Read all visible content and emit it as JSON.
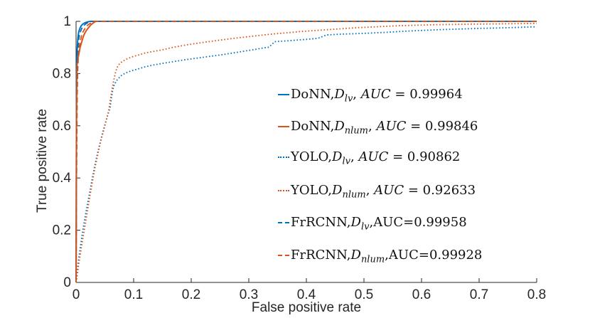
{
  "chart_data": {
    "type": "line",
    "xlabel": "False positive rate",
    "ylabel": "True positive rate",
    "xlim": [
      0,
      0.8
    ],
    "ylim": [
      0,
      1
    ],
    "grid": false,
    "legend_position": "center-right, no box",
    "x_tick_values": [
      0,
      0.1,
      0.2,
      0.3,
      0.4,
      0.5,
      0.6,
      0.7,
      0.8
    ],
    "x_tick_labels": [
      "0",
      "0.1",
      "0.2",
      "0.3",
      "0.4",
      "0.5",
      "0.6",
      "0.7",
      "0.8"
    ],
    "y_tick_values": [
      0,
      0.2,
      0.4,
      0.6,
      0.8,
      1
    ],
    "y_tick_labels": [
      "0",
      "0.2",
      "0.4",
      "0.6",
      "0.8",
      "1"
    ],
    "axis_color": "#262626",
    "series": [
      {
        "name": "DoNN-Dlv",
        "label": "DoNN,Dlv",
        "auc": 0.99964,
        "color": "#0072BD",
        "line_style": "solid",
        "points": [
          [
            0,
            0
          ],
          [
            0.0004,
            0.3
          ],
          [
            0.0006,
            0.62
          ],
          [
            0.001,
            0.8
          ],
          [
            0.0015,
            0.86
          ],
          [
            0.002,
            0.895
          ],
          [
            0.003,
            0.93
          ],
          [
            0.004,
            0.95
          ],
          [
            0.005,
            0.962
          ],
          [
            0.007,
            0.975
          ],
          [
            0.009,
            0.983
          ],
          [
            0.012,
            0.99
          ],
          [
            0.015,
            0.994
          ],
          [
            0.02,
            0.998
          ],
          [
            0.025,
            1
          ],
          [
            0.8,
            1
          ]
        ]
      },
      {
        "name": "DoNN-Dnlum",
        "label": "DoNN,Dnlum",
        "auc": 0.99846,
        "color": "#D95319",
        "line_style": "solid",
        "points": [
          [
            0,
            0
          ],
          [
            0.0004,
            0.28
          ],
          [
            0.0008,
            0.6
          ],
          [
            0.0012,
            0.76
          ],
          [
            0.0016,
            0.82
          ],
          [
            0.002,
            0.84
          ],
          [
            0.003,
            0.855
          ],
          [
            0.004,
            0.865
          ],
          [
            0.005,
            0.876
          ],
          [
            0.006,
            0.888
          ],
          [
            0.007,
            0.9
          ],
          [
            0.009,
            0.915
          ],
          [
            0.011,
            0.93
          ],
          [
            0.013,
            0.944
          ],
          [
            0.015,
            0.954
          ],
          [
            0.018,
            0.965
          ],
          [
            0.021,
            0.974
          ],
          [
            0.024,
            0.982
          ],
          [
            0.027,
            0.989
          ],
          [
            0.03,
            0.994
          ],
          [
            0.034,
            1
          ],
          [
            0.8,
            1
          ]
        ]
      },
      {
        "name": "YOLO-Dlv",
        "label": "YOLO,Dlv",
        "auc": 0.90862,
        "color": "#0072BD",
        "line_style": "dotted",
        "points": [
          [
            0,
            0
          ],
          [
            0.001,
            0.02
          ],
          [
            0.002,
            0.045
          ],
          [
            0.004,
            0.08
          ],
          [
            0.006,
            0.115
          ],
          [
            0.008,
            0.145
          ],
          [
            0.01,
            0.175
          ],
          [
            0.013,
            0.215
          ],
          [
            0.016,
            0.255
          ],
          [
            0.019,
            0.29
          ],
          [
            0.022,
            0.325
          ],
          [
            0.025,
            0.36
          ],
          [
            0.028,
            0.398
          ],
          [
            0.031,
            0.43
          ],
          [
            0.034,
            0.462
          ],
          [
            0.037,
            0.492
          ],
          [
            0.04,
            0.52
          ],
          [
            0.044,
            0.555
          ],
          [
            0.048,
            0.588
          ],
          [
            0.052,
            0.62
          ],
          [
            0.056,
            0.648
          ],
          [
            0.059,
            0.668
          ],
          [
            0.061,
            0.7
          ],
          [
            0.0635,
            0.735
          ],
          [
            0.066,
            0.755
          ],
          [
            0.07,
            0.772
          ],
          [
            0.075,
            0.785
          ],
          [
            0.08,
            0.795
          ],
          [
            0.09,
            0.806
          ],
          [
            0.1,
            0.813
          ],
          [
            0.11,
            0.819
          ],
          [
            0.12,
            0.826
          ],
          [
            0.135,
            0.833
          ],
          [
            0.15,
            0.839
          ],
          [
            0.17,
            0.846
          ],
          [
            0.19,
            0.853
          ],
          [
            0.21,
            0.859
          ],
          [
            0.23,
            0.865
          ],
          [
            0.25,
            0.871
          ],
          [
            0.27,
            0.878
          ],
          [
            0.29,
            0.885
          ],
          [
            0.31,
            0.892
          ],
          [
            0.325,
            0.898
          ],
          [
            0.335,
            0.901
          ],
          [
            0.345,
            0.922
          ],
          [
            0.37,
            0.926
          ],
          [
            0.4,
            0.931
          ],
          [
            0.42,
            0.935
          ],
          [
            0.435,
            0.948
          ],
          [
            0.46,
            0.951
          ],
          [
            0.49,
            0.953
          ],
          [
            0.51,
            0.955
          ],
          [
            0.54,
            0.958
          ],
          [
            0.57,
            0.962
          ],
          [
            0.6,
            0.965
          ],
          [
            0.63,
            0.968
          ],
          [
            0.66,
            0.97
          ],
          [
            0.7,
            0.973
          ],
          [
            0.74,
            0.975
          ],
          [
            0.77,
            0.977
          ],
          [
            0.8,
            0.979
          ]
        ]
      },
      {
        "name": "YOLO-Dnlum",
        "label": "YOLO,Dnlum",
        "auc": 0.92633,
        "color": "#D95319",
        "line_style": "dotted",
        "points": [
          [
            0,
            0
          ],
          [
            0.002,
            0.025
          ],
          [
            0.004,
            0.06
          ],
          [
            0.006,
            0.09
          ],
          [
            0.009,
            0.13
          ],
          [
            0.012,
            0.17
          ],
          [
            0.015,
            0.21
          ],
          [
            0.018,
            0.25
          ],
          [
            0.021,
            0.29
          ],
          [
            0.024,
            0.33
          ],
          [
            0.027,
            0.368
          ],
          [
            0.03,
            0.405
          ],
          [
            0.033,
            0.44
          ],
          [
            0.036,
            0.472
          ],
          [
            0.039,
            0.503
          ],
          [
            0.042,
            0.532
          ],
          [
            0.045,
            0.558
          ],
          [
            0.048,
            0.583
          ],
          [
            0.051,
            0.608
          ],
          [
            0.054,
            0.633
          ],
          [
            0.057,
            0.663
          ],
          [
            0.059,
            0.693
          ],
          [
            0.061,
            0.72
          ],
          [
            0.063,
            0.745
          ],
          [
            0.065,
            0.77
          ],
          [
            0.068,
            0.8
          ],
          [
            0.071,
            0.822
          ],
          [
            0.075,
            0.836
          ],
          [
            0.08,
            0.846
          ],
          [
            0.09,
            0.858
          ],
          [
            0.1,
            0.866
          ],
          [
            0.11,
            0.872
          ],
          [
            0.12,
            0.879
          ],
          [
            0.135,
            0.885
          ],
          [
            0.15,
            0.891
          ],
          [
            0.17,
            0.901
          ],
          [
            0.19,
            0.909
          ],
          [
            0.21,
            0.916
          ],
          [
            0.23,
            0.922
          ],
          [
            0.25,
            0.928
          ],
          [
            0.27,
            0.934
          ],
          [
            0.29,
            0.939
          ],
          [
            0.31,
            0.944
          ],
          [
            0.33,
            0.949
          ],
          [
            0.35,
            0.953
          ],
          [
            0.37,
            0.957
          ],
          [
            0.39,
            0.961
          ],
          [
            0.41,
            0.964
          ],
          [
            0.43,
            0.967
          ],
          [
            0.45,
            0.97
          ],
          [
            0.47,
            0.973
          ],
          [
            0.49,
            0.976
          ],
          [
            0.51,
            0.978
          ],
          [
            0.53,
            0.98
          ],
          [
            0.56,
            0.983
          ],
          [
            0.59,
            0.985
          ],
          [
            0.62,
            0.987
          ],
          [
            0.65,
            0.988
          ],
          [
            0.68,
            0.989
          ],
          [
            0.72,
            0.99
          ],
          [
            0.76,
            0.991
          ],
          [
            0.8,
            0.992
          ]
        ]
      },
      {
        "name": "FrRCNN-Dlv",
        "label": "FrRCNN,Dlv",
        "auc": 0.99958,
        "color": "#0072BD",
        "line_style": "dashed",
        "points": [
          [
            0,
            0
          ],
          [
            0.0008,
            0.4
          ],
          [
            0.0015,
            0.66
          ],
          [
            0.002,
            0.78
          ],
          [
            0.003,
            0.875
          ],
          [
            0.004,
            0.915
          ],
          [
            0.005,
            0.935
          ],
          [
            0.006,
            0.95
          ],
          [
            0.008,
            0.963
          ],
          [
            0.01,
            0.973
          ],
          [
            0.012,
            0.98
          ],
          [
            0.015,
            0.987
          ],
          [
            0.018,
            0.992
          ],
          [
            0.022,
            0.997
          ],
          [
            0.026,
            1
          ],
          [
            0.8,
            1
          ]
        ]
      },
      {
        "name": "FrRCNN-Dnlum",
        "label": "FrRCNN,Dnlum",
        "auc": 0.99928,
        "color": "#D95319",
        "line_style": "dashed",
        "points": [
          [
            0,
            0
          ],
          [
            0.0008,
            0.36
          ],
          [
            0.0015,
            0.6
          ],
          [
            0.002,
            0.72
          ],
          [
            0.003,
            0.82
          ],
          [
            0.004,
            0.865
          ],
          [
            0.005,
            0.895
          ],
          [
            0.007,
            0.92
          ],
          [
            0.009,
            0.941
          ],
          [
            0.011,
            0.955
          ],
          [
            0.014,
            0.967
          ],
          [
            0.017,
            0.977
          ],
          [
            0.02,
            0.985
          ],
          [
            0.024,
            0.991
          ],
          [
            0.028,
            0.996
          ],
          [
            0.032,
            1
          ],
          [
            0.8,
            1
          ]
        ]
      }
    ]
  },
  "legend": {
    "entries": [
      {
        "prefix": "DoNN,",
        "dvar": "D",
        "dsub": "lv",
        "sep": ", ",
        "auc": "AUC",
        "tail": " = 0.99964",
        "color": "#0072BD",
        "style": "solid"
      },
      {
        "prefix": "DoNN,",
        "dvar": "D",
        "dsub": "nlum",
        "sep": ", ",
        "auc": "AUC",
        "tail": " = 0.99846",
        "color": "#D95319",
        "style": "solid"
      },
      {
        "prefix": "YOLO,",
        "dvar": "D",
        "dsub": "lv",
        "sep": ", ",
        "auc": "AUC",
        "tail": " = 0.90862",
        "color": "#0072BD",
        "style": "dotted"
      },
      {
        "prefix": "YOLO,",
        "dvar": "D",
        "dsub": "nlum",
        "sep": ", ",
        "auc": "AUC",
        "tail": " = 0.92633",
        "color": "#D95319",
        "style": "dotted"
      },
      {
        "prefix": "FrRCNN,",
        "dvar": "D",
        "dsub": "lv",
        "sep": ",",
        "auc": "AUC",
        "tail": "=0.99958",
        "color": "#0072BD",
        "style": "dashed"
      },
      {
        "prefix": "FrRCNN,",
        "dvar": "D",
        "dsub": "nlum",
        "sep": ",",
        "auc": "AUC",
        "tail": "=0.99928",
        "color": "#D95319",
        "style": "dashed"
      }
    ]
  }
}
